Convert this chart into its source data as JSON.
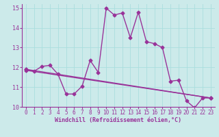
{
  "xlabel": "Windchill (Refroidissement éolien,°C)",
  "background_color": "#cceaea",
  "line_color": "#993399",
  "grid_color": "#aadddd",
  "xlim": [
    -0.5,
    23.5
  ],
  "ylim": [
    10,
    15.2
  ],
  "yticks": [
    10,
    11,
    12,
    13,
    14,
    15
  ],
  "xticks": [
    0,
    1,
    2,
    3,
    4,
    5,
    6,
    7,
    8,
    9,
    10,
    11,
    12,
    13,
    14,
    15,
    16,
    17,
    18,
    19,
    20,
    21,
    22,
    23
  ],
  "main_series_x": [
    0,
    1,
    2,
    3,
    4,
    5,
    6,
    7,
    8,
    9,
    10,
    11,
    12,
    13,
    14,
    15,
    16,
    17,
    18,
    19,
    20,
    21,
    22,
    23
  ],
  "main_series_y": [
    11.9,
    11.8,
    12.05,
    12.1,
    11.65,
    10.65,
    10.65,
    11.05,
    12.35,
    11.75,
    15.0,
    14.65,
    14.75,
    13.5,
    14.8,
    13.3,
    13.2,
    13.0,
    11.3,
    11.35,
    10.3,
    9.95,
    10.45,
    10.45
  ],
  "line2_x": [
    0,
    23
  ],
  "line2_y": [
    11.9,
    10.45
  ],
  "line3_x": [
    0,
    23
  ],
  "line3_y": [
    11.85,
    10.45
  ],
  "marker": "D",
  "markersize": 2.5,
  "linewidth": 1.0,
  "tick_fontsize": 5.5,
  "xlabel_fontsize": 6.0
}
